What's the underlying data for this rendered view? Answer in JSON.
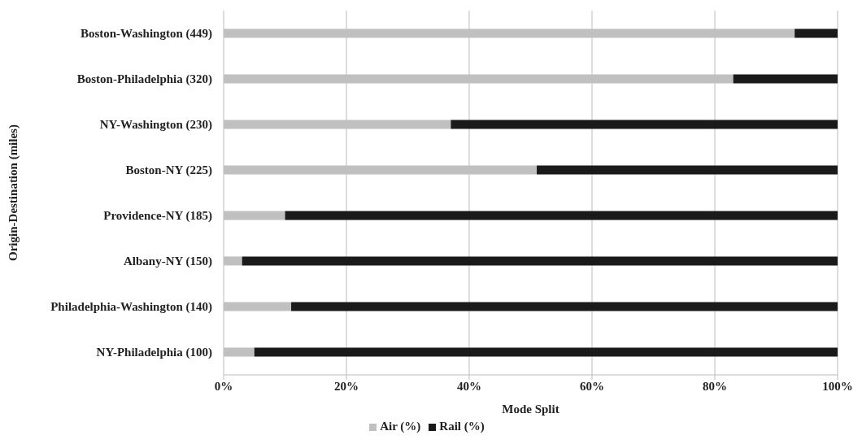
{
  "chart_data": {
    "type": "bar",
    "orientation": "horizontal",
    "stacked": true,
    "xlabel": "Mode Split",
    "ylabel": "Origin-Destination (miles)",
    "categories": [
      "Boston-Washington (449)",
      "Boston-Philadelphia (320)",
      "NY-Washington (230)",
      "Boston-NY (225)",
      "Providence-NY (185)",
      "Albany-NY (150)",
      "Philadelphia-Washington (140)",
      "NY-Philadelphia (100)"
    ],
    "series": [
      {
        "name": "Air (%)",
        "color": "#c0c0c0",
        "values": [
          93,
          83,
          37,
          51,
          10,
          3,
          11,
          5
        ]
      },
      {
        "name": "Rail (%)",
        "color": "#1a1a1a",
        "values": [
          7,
          17,
          63,
          49,
          90,
          97,
          89,
          95
        ]
      }
    ],
    "xlim": [
      0,
      100
    ],
    "xticks": [
      {
        "value": 0,
        "label": "0%"
      },
      {
        "value": 20,
        "label": "20%"
      },
      {
        "value": 40,
        "label": "40%"
      },
      {
        "value": 60,
        "label": "60%"
      },
      {
        "value": 80,
        "label": "80%"
      },
      {
        "value": 100,
        "label": "100%"
      }
    ],
    "grid": "x",
    "legend": "bottom"
  }
}
